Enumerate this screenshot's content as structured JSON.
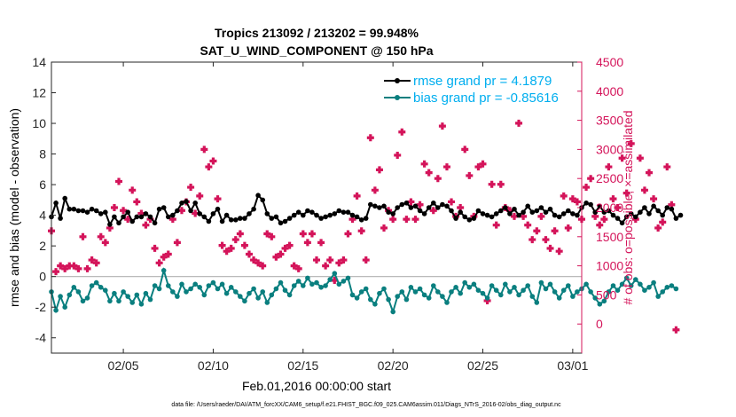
{
  "chart_data": {
    "type": "line",
    "title_line1": "Tropics 213092 / 213202 = 99.948%",
    "title_line2": "SAT_U_WIND_COMPONENT @ 150 hPa",
    "xlabel": "Feb.01,2016 00:00:00 start",
    "ylabel_left": "rmse and bias (model - observation)",
    "ylabel_right": "# of obs: o=possible; ×=assimilated",
    "footnote": "data file: /Users/raeder/DAI/ATM_forcXX/CAM6_setup/f.e21.FHIST_BGC.f09_025.CAM6assim.011/Diags_NTrS_2016-02/obs_diag_output.nc",
    "xlim": [
      1,
      30.5
    ],
    "ylim_left": [
      -5,
      14
    ],
    "ylim_right": [
      -500,
      4500
    ],
    "x_ticks": [
      5,
      10,
      15,
      20,
      25,
      30
    ],
    "x_tick_labels": [
      "02/05",
      "02/10",
      "02/15",
      "02/20",
      "02/25",
      "03/01"
    ],
    "yl_ticks": [
      -4,
      -2,
      0,
      2,
      4,
      6,
      8,
      10,
      12,
      14
    ],
    "yl_tick_labels": [
      "-4",
      "-2",
      "0",
      "2",
      "4",
      "6",
      "8",
      "10",
      "12",
      "14"
    ],
    "yr_ticks": [
      0,
      500,
      1000,
      1500,
      2000,
      2500,
      3000,
      3500,
      4000,
      4500
    ],
    "yr_tick_labels": [
      "0",
      "500",
      "1000",
      "1500",
      "2000",
      "2500",
      "3000",
      "3500",
      "4000",
      "4500"
    ],
    "colors": {
      "rmse": "#000000",
      "bias": "#0a7f7f",
      "obs": "#d4145a",
      "legend_text": "#00aeef",
      "zero_line": "#b0b0b0"
    },
    "series": [
      {
        "name": "rmse grand pr = 4.1879",
        "axis": "left",
        "x_start": 1,
        "x_step": 0.25,
        "values": [
          3.9,
          4.8,
          3.8,
          5.1,
          4.4,
          4.4,
          4.3,
          4.3,
          4.2,
          4.4,
          4.3,
          4.1,
          4.2,
          3.4,
          3.9,
          3.5,
          3.9,
          4.2,
          3.6,
          3.9,
          3.9,
          4.1,
          3.9,
          3.5,
          4.4,
          4.5,
          3.9,
          4.0,
          4.3,
          4.8,
          4.9,
          4.3,
          4.8,
          4.1,
          3.9,
          3.6,
          4.1,
          4.4,
          3.6,
          4.0,
          3.7,
          3.7,
          3.8,
          3.8,
          4.1,
          4.4,
          5.3,
          5.0,
          4.1,
          3.8,
          3.9,
          3.5,
          3.6,
          3.8,
          4.0,
          4.2,
          4.0,
          4.3,
          4.2,
          4.0,
          3.8,
          3.9,
          4.0,
          4.1,
          4.3,
          4.2,
          4.2,
          4.0,
          3.9,
          3.7,
          3.8,
          4.7,
          4.6,
          4.5,
          4.6,
          4.2,
          4.1,
          4.5,
          4.7,
          4.8,
          4.5,
          4.6,
          4.3,
          4.1,
          4.5,
          4.8,
          4.5,
          4.7,
          4.6,
          4.3,
          3.8,
          4.2,
          3.9,
          3.7,
          3.8,
          4.3,
          4.1,
          4.0,
          3.9,
          4.1,
          4.3,
          4.5,
          4.1,
          4.4,
          4.0,
          4.2,
          4.6,
          4.2,
          4.3,
          4.5,
          4.2,
          4.4,
          4.0,
          3.9,
          4.1,
          4.3,
          4.1,
          4.0,
          4.5,
          4.8,
          4.7,
          4.2,
          4.6,
          4.2,
          4.3,
          4.0,
          3.8,
          3.5,
          3.9,
          4.1,
          3.9,
          4.2,
          4.5,
          4.1,
          4.6,
          4.3,
          4.0,
          4.5,
          4.4,
          3.8,
          4.0
        ]
      },
      {
        "name": "bias grand pr = -0.85616",
        "axis": "left",
        "x_start": 1,
        "x_step": 0.25,
        "values": [
          -1.0,
          -2.2,
          -1.3,
          -2.0,
          -1.2,
          -0.7,
          -1.0,
          -1.6,
          -1.4,
          -0.6,
          -0.4,
          -0.7,
          -0.9,
          -1.6,
          -1.1,
          -1.6,
          -1.0,
          -1.3,
          -1.7,
          -1.2,
          -1.8,
          -1.1,
          -1.5,
          -0.6,
          -0.8,
          0.4,
          -0.6,
          -1.0,
          -1.3,
          -0.5,
          -1.0,
          -0.8,
          -0.5,
          -0.7,
          -1.2,
          -0.6,
          -0.4,
          -0.8,
          -0.5,
          -1.1,
          -0.7,
          -1.0,
          -1.3,
          -1.6,
          -1.1,
          -0.8,
          -1.4,
          -1.0,
          -1.7,
          -1.2,
          -0.8,
          -0.4,
          -0.9,
          -1.2,
          -0.6,
          -0.3,
          -0.6,
          -0.1,
          -0.5,
          -0.4,
          -0.7,
          -0.6,
          -0.2,
          0.2,
          -0.5,
          -0.3,
          -0.1,
          -1.2,
          -1.4,
          -1.0,
          -0.8,
          -1.5,
          -1.8,
          -1.1,
          -0.8,
          -1.5,
          -2.3,
          -1.3,
          -1.0,
          -1.5,
          -0.7,
          -1.0,
          -0.8,
          -1.2,
          -1.4,
          -0.6,
          -1.0,
          -1.3,
          -1.7,
          -1.0,
          -0.7,
          -1.1,
          -0.4,
          -0.7,
          -0.5,
          -0.9,
          -1.1,
          -1.4,
          -0.6,
          -0.9,
          -1.2,
          -0.5,
          -1.0,
          -0.7,
          -1.2,
          -0.9,
          -0.6,
          -1.3,
          -1.7,
          -0.4,
          -0.8,
          -0.5,
          -1.0,
          -1.4,
          -0.9,
          -0.6,
          -1.3,
          -1.0,
          -0.8,
          -0.5,
          -1.0,
          -1.4,
          -1.8,
          -1.6,
          -1.0,
          -0.6,
          -0.9,
          -0.5,
          -0.1,
          -0.6,
          -0.2,
          -0.5,
          -0.9,
          -0.7,
          -0.4,
          -1.3,
          -1.0,
          -0.7,
          -0.6,
          -0.8
        ]
      },
      {
        "name": "# of obs",
        "axis": "right",
        "x_start": 1,
        "x_step": 0.25,
        "values": [
          1600,
          900,
          1000,
          950,
          1000,
          1000,
          950,
          1500,
          950,
          1100,
          1050,
          1500,
          1400,
          1650,
          2000,
          2450,
          1950,
          1800,
          2300,
          2100,
          1900,
          1700,
          1800,
          1300,
          1050,
          1150,
          1200,
          1800,
          1400,
          1950,
          2100,
          2350,
          1900,
          2200,
          3000,
          2700,
          2800,
          2150,
          1350,
          1250,
          1300,
          1450,
          1550,
          1350,
          1200,
          1100,
          1050,
          1000,
          1550,
          1500,
          1150,
          1200,
          1300,
          1350,
          1000,
          950,
          1550,
          1400,
          1550,
          1100,
          1400,
          1000,
          1100,
          750,
          1050,
          1100,
          1550,
          1800,
          2200,
          1600,
          1100,
          3200,
          2300,
          2650,
          1650,
          1950,
          1800,
          2900,
          3300,
          1800,
          2100,
          1800,
          2050,
          2750,
          2600,
          1950,
          2500,
          3400,
          2700,
          2100,
          1850,
          2000,
          3000,
          2550,
          1850,
          2700,
          2750,
          400,
          2400,
          1700,
          2400,
          2000,
          1950,
          1850,
          3450,
          1850,
          1700,
          1450,
          1600,
          1850,
          1450,
          1300,
          1600,
          1250,
          2200,
          1650,
          2150,
          2100,
          1800,
          2350,
          2500,
          1850,
          1700,
          1800,
          2700,
          2150,
          2000,
          2850,
          2250,
          3100,
          1800,
          2850,
          2300,
          2600,
          2150,
          1650,
          1750,
          2700,
          2050,
          -100
        ]
      }
    ]
  }
}
